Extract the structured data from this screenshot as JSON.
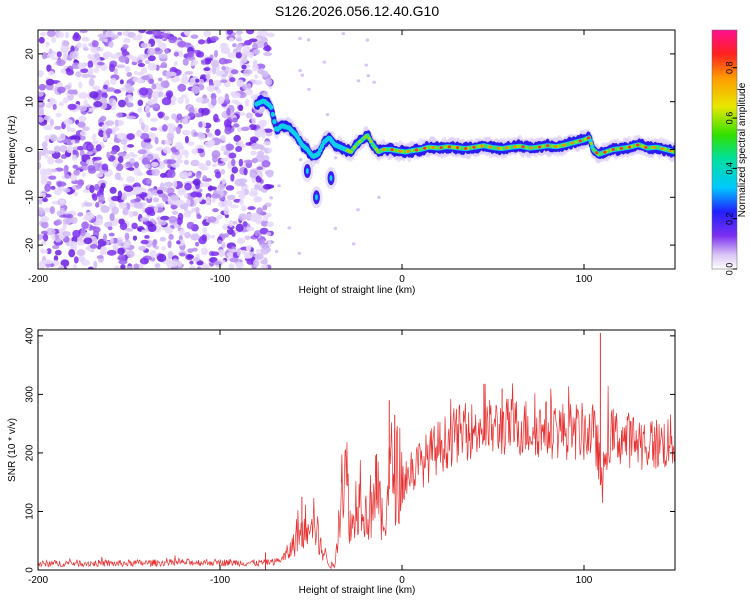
{
  "figure_title": "S126.2026.056.12.40.G10",
  "chart_data": [
    {
      "type": "heatmap",
      "name": "spectrogram",
      "title": "S126.2026.056.12.40.G10",
      "xlabel": "Height of straight line (km)",
      "ylabel": "Frequency (Hz)",
      "xlim": [
        -200,
        150
      ],
      "ylim": [
        -25,
        25
      ],
      "xticks": [
        -200,
        -100,
        0,
        100
      ],
      "xtick_labels": [
        "-200",
        "-100",
        "0",
        "100"
      ],
      "yticks": [
        -20,
        -10,
        0,
        10,
        20
      ],
      "ytick_labels": [
        "-20",
        "-10",
        "0",
        "10",
        "20"
      ],
      "colorbar": {
        "label": "Normalized spectral amplitude",
        "range": [
          0,
          0.95
        ],
        "ticks": [
          0.0,
          0.2,
          0.4,
          0.6,
          0.8
        ],
        "tick_labels": [
          "0.0",
          "0.2",
          "0.4",
          "0.6",
          "0.8"
        ]
      },
      "noise_region": {
        "x": [
          -200,
          -72
        ],
        "y": [
          -25,
          25
        ]
      },
      "ridge": {
        "x": [
          -80,
          -76,
          -72,
          -69,
          -66,
          -62,
          -58,
          -55,
          -52,
          -49,
          -46,
          -43,
          -40,
          -37,
          -34,
          -31,
          -28,
          -25,
          -22,
          -19,
          -16,
          -13,
          -10,
          -6,
          -2,
          2,
          6,
          10,
          15,
          20,
          25,
          30,
          35,
          40,
          45,
          50,
          55,
          60,
          65,
          70,
          75,
          80,
          85,
          90,
          95,
          100,
          103,
          105,
          108,
          112,
          116,
          120,
          125,
          130,
          135,
          140,
          145,
          150
        ],
        "y": [
          9.5,
          10.2,
          9.0,
          4.0,
          5.0,
          4.5,
          3.0,
          1.0,
          0.0,
          -1.5,
          -1.0,
          1.5,
          2.5,
          1.0,
          0.5,
          0.0,
          -0.5,
          1.0,
          2.0,
          3.0,
          1.0,
          -0.5,
          0.0,
          0.0,
          -0.3,
          -0.5,
          -0.2,
          0.0,
          0.5,
          0.3,
          0.6,
          0.4,
          0.2,
          0.5,
          0.8,
          0.4,
          0.2,
          0.5,
          0.7,
          0.3,
          0.5,
          0.8,
          0.6,
          1.0,
          1.5,
          2.0,
          2.5,
          0.0,
          -1.0,
          -0.5,
          0.0,
          0.2,
          0.5,
          1.0,
          0.3,
          0.5,
          0.0,
          -0.5
        ]
      },
      "side_features": [
        {
          "x": -47,
          "y": -10.0
        },
        {
          "x": -39,
          "y": -6.0
        },
        {
          "x": -52,
          "y": -4.5
        }
      ]
    },
    {
      "type": "line",
      "name": "snr",
      "xlabel": "Height of straight line (km)",
      "ylabel": "SNR (10 * v/v)",
      "xlim": [
        -200,
        150
      ],
      "ylim": [
        0,
        410
      ],
      "xticks": [
        -200,
        -100,
        0,
        100
      ],
      "xtick_labels": [
        "-200",
        "-100",
        "0",
        "100"
      ],
      "yticks": [
        0,
        100,
        200,
        300,
        400
      ],
      "ytick_labels": [
        "0",
        "100",
        "200",
        "300",
        "400"
      ],
      "series": [
        {
          "name": "SNR",
          "color": "#e83030",
          "x": [
            -200,
            -180,
            -160,
            -140,
            -120,
            -100,
            -80,
            -70,
            -65,
            -60,
            -57,
            -55,
            -52,
            -50,
            -47,
            -45,
            -42,
            -40,
            -37,
            -35,
            -33,
            -30,
            -28,
            -25,
            -22,
            -20,
            -17,
            -15,
            -12,
            -10,
            -8,
            -5,
            -3,
            0,
            5,
            10,
            15,
            20,
            25,
            30,
            40,
            50,
            60,
            70,
            80,
            90,
            100,
            105,
            108,
            110,
            112,
            115,
            120,
            130,
            140,
            150
          ],
          "y": [
            10,
            12,
            11,
            12,
            13,
            13,
            12,
            14,
            20,
            40,
            70,
            60,
            85,
            110,
            70,
            40,
            25,
            10,
            5,
            80,
            170,
            150,
            60,
            120,
            150,
            90,
            110,
            160,
            100,
            60,
            150,
            175,
            165,
            150,
            170,
            180,
            195,
            210,
            220,
            232,
            240,
            242,
            245,
            243,
            240,
            238,
            235,
            236,
            200,
            130,
            215,
            230,
            225,
            220,
            215,
            220
          ],
          "spikes": [
            {
              "x": -75,
              "y": 30
            },
            {
              "x": -55,
              "y": 125
            },
            {
              "x": -33,
              "y": 180
            },
            {
              "x": -14,
              "y": 198
            },
            {
              "x": -7,
              "y": 290
            },
            {
              "x": -4,
              "y": 265
            },
            {
              "x": 45,
              "y": 318
            },
            {
              "x": 55,
              "y": 310
            },
            {
              "x": 109,
              "y": 405
            }
          ]
        }
      ]
    }
  ]
}
